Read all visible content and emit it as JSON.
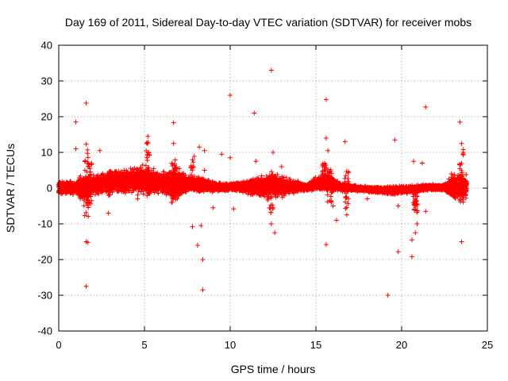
{
  "chart_data": {
    "type": "scatter",
    "title": "Day 169 of 2011, Sidereal Day-to-day VTEC variation (SDTVAR) for receiver mobs",
    "xlabel": "GPS time / hours",
    "ylabel": "SDTVAR / TECUs",
    "xlim": [
      0,
      25
    ],
    "ylim": [
      -40,
      40
    ],
    "x_ticks": [
      0,
      5,
      10,
      15,
      20,
      25
    ],
    "y_ticks": [
      -40,
      -30,
      -20,
      -10,
      0,
      10,
      20,
      30,
      40
    ],
    "x_tick_labels": [
      "0",
      "5",
      "10",
      "15",
      "20",
      "25"
    ],
    "y_tick_labels": [
      "-40",
      "-30",
      "-20",
      "-10",
      "0",
      "10",
      "20",
      "30",
      "40"
    ],
    "grid": true,
    "marker": "+",
    "color": "#ff0000",
    "band": {
      "description": "dense band of points around zero from 0 to 24 hours",
      "envelope": [
        {
          "x": 0.0,
          "lo": -2.0,
          "hi": 2.5
        },
        {
          "x": 1.0,
          "lo": -2.0,
          "hi": 2.0
        },
        {
          "x": 1.5,
          "lo": -6.0,
          "hi": 6.0
        },
        {
          "x": 2.0,
          "lo": -2.5,
          "hi": 4.0
        },
        {
          "x": 3.0,
          "lo": -1.5,
          "hi": 5.0
        },
        {
          "x": 4.0,
          "lo": -2.0,
          "hi": 6.0
        },
        {
          "x": 5.0,
          "lo": -2.5,
          "hi": 7.0
        },
        {
          "x": 6.0,
          "lo": -2.0,
          "hi": 5.0
        },
        {
          "x": 6.8,
          "lo": -5.0,
          "hi": 8.0
        },
        {
          "x": 7.5,
          "lo": -1.5,
          "hi": 4.0
        },
        {
          "x": 8.5,
          "lo": -1.5,
          "hi": 3.0
        },
        {
          "x": 9.5,
          "lo": -1.0,
          "hi": 1.5
        },
        {
          "x": 10.5,
          "lo": -1.0,
          "hi": 2.0
        },
        {
          "x": 11.5,
          "lo": -3.0,
          "hi": 3.5
        },
        {
          "x": 12.5,
          "lo": -4.0,
          "hi": 5.0
        },
        {
          "x": 13.5,
          "lo": -2.0,
          "hi": 3.0
        },
        {
          "x": 14.5,
          "lo": -1.0,
          "hi": 1.5
        },
        {
          "x": 15.5,
          "lo": -1.5,
          "hi": 5.0
        },
        {
          "x": 16.5,
          "lo": -1.0,
          "hi": 1.5
        },
        {
          "x": 17.5,
          "lo": -1.0,
          "hi": 0.8
        },
        {
          "x": 18.5,
          "lo": -1.5,
          "hi": 0.5
        },
        {
          "x": 19.5,
          "lo": -2.0,
          "hi": 0.8
        },
        {
          "x": 20.5,
          "lo": -1.5,
          "hi": 0.8
        },
        {
          "x": 21.5,
          "lo": -0.8,
          "hi": 1.2
        },
        {
          "x": 22.5,
          "lo": -0.8,
          "hi": 1.2
        },
        {
          "x": 23.0,
          "lo": -4.0,
          "hi": 5.0
        },
        {
          "x": 23.8,
          "lo": -4.0,
          "hi": 5.0
        }
      ]
    },
    "spikes": [
      {
        "x": 1.6,
        "lo": -8,
        "hi": 11
      },
      {
        "x": 1.8,
        "lo": -5,
        "hi": 7
      },
      {
        "x": 3.0,
        "lo": -2,
        "hi": 5
      },
      {
        "x": 5.2,
        "lo": -3,
        "hi": 13
      },
      {
        "x": 6.7,
        "lo": -5,
        "hi": 8
      },
      {
        "x": 7.8,
        "lo": -1,
        "hi": 9
      },
      {
        "x": 12.4,
        "lo": -7,
        "hi": 4
      },
      {
        "x": 15.5,
        "lo": 0,
        "hi": 7
      },
      {
        "x": 15.8,
        "lo": -4,
        "hi": 6
      },
      {
        "x": 16.8,
        "lo": -6,
        "hi": 5
      },
      {
        "x": 20.8,
        "lo": -8,
        "hi": 0
      },
      {
        "x": 23.5,
        "lo": -4,
        "hi": 11
      }
    ],
    "outliers": [
      {
        "x": 1.0,
        "y": 18.5
      },
      {
        "x": 1.6,
        "y": 23.8
      },
      {
        "x": 1.6,
        "y": 12.3
      },
      {
        "x": 1.6,
        "y": -15.0
      },
      {
        "x": 1.7,
        "y": -15.2
      },
      {
        "x": 1.6,
        "y": -27.5
      },
      {
        "x": 2.4,
        "y": 10.5
      },
      {
        "x": 2.9,
        "y": -7.0
      },
      {
        "x": 1.0,
        "y": 11.0
      },
      {
        "x": 5.2,
        "y": 14.5
      },
      {
        "x": 4.6,
        "y": -3.0
      },
      {
        "x": 6.7,
        "y": 18.3
      },
      {
        "x": 6.7,
        "y": 12.5
      },
      {
        "x": 7.8,
        "y": -10.8
      },
      {
        "x": 8.1,
        "y": -16.0
      },
      {
        "x": 8.2,
        "y": 11.5
      },
      {
        "x": 8.3,
        "y": -10.5
      },
      {
        "x": 8.4,
        "y": -20.0
      },
      {
        "x": 8.4,
        "y": -28.5
      },
      {
        "x": 8.5,
        "y": 10.5
      },
      {
        "x": 8.5,
        "y": 5.0
      },
      {
        "x": 9.0,
        "y": -5.5
      },
      {
        "x": 9.5,
        "y": 9.5
      },
      {
        "x": 10.0,
        "y": 26.0
      },
      {
        "x": 10.0,
        "y": 8.5
      },
      {
        "x": 10.2,
        "y": -5.8
      },
      {
        "x": 11.4,
        "y": 21.0
      },
      {
        "x": 11.5,
        "y": 7.5
      },
      {
        "x": 12.4,
        "y": 33.0
      },
      {
        "x": 12.5,
        "y": 10.0
      },
      {
        "x": 12.6,
        "y": -12.5
      },
      {
        "x": 12.4,
        "y": -10.0
      },
      {
        "x": 13.0,
        "y": 6.0
      },
      {
        "x": 15.6,
        "y": 24.8
      },
      {
        "x": 15.6,
        "y": 14.0
      },
      {
        "x": 15.7,
        "y": 10.5
      },
      {
        "x": 15.6,
        "y": -15.8
      },
      {
        "x": 15.8,
        "y": -3.5
      },
      {
        "x": 16.0,
        "y": -5.0
      },
      {
        "x": 16.2,
        "y": -9.0
      },
      {
        "x": 16.7,
        "y": 13.0
      },
      {
        "x": 16.8,
        "y": -7.5
      },
      {
        "x": 18.0,
        "y": -3.0
      },
      {
        "x": 19.2,
        "y": -30.0
      },
      {
        "x": 19.6,
        "y": 13.5
      },
      {
        "x": 19.8,
        "y": -17.8
      },
      {
        "x": 19.8,
        "y": -5.0
      },
      {
        "x": 20.6,
        "y": -19.2
      },
      {
        "x": 20.6,
        "y": -14.5
      },
      {
        "x": 20.7,
        "y": 7.5
      },
      {
        "x": 20.8,
        "y": -12.5
      },
      {
        "x": 20.9,
        "y": -10.0
      },
      {
        "x": 21.2,
        "y": 7.0
      },
      {
        "x": 21.4,
        "y": 22.7
      },
      {
        "x": 21.4,
        "y": -6.5
      },
      {
        "x": 22.9,
        "y": 4.0
      },
      {
        "x": 23.4,
        "y": 18.5
      },
      {
        "x": 23.5,
        "y": 12.5
      },
      {
        "x": 23.5,
        "y": -15.0
      },
      {
        "x": 23.6,
        "y": 10.0
      }
    ]
  }
}
